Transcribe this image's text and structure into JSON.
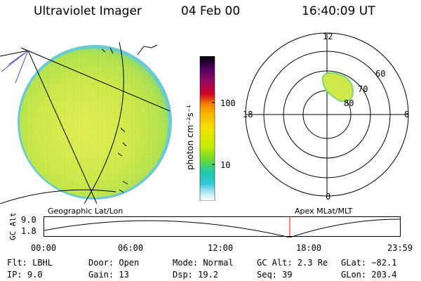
{
  "header": {
    "instrument": "Ultraviolet Imager",
    "date": "04 Feb 00",
    "time": "16:40:09 UT"
  },
  "colorbar": {
    "label": "photon cm⁻²s⁻¹",
    "ticks": [
      "100",
      "10"
    ],
    "colors": [
      "#000000",
      "#4b0060",
      "#6d0a78",
      "#a3003c",
      "#d3002a",
      "#f0a000",
      "#f7e000",
      "#d7f000",
      "#a8e800",
      "#40d840",
      "#20c8c8",
      "#b0e8f0",
      "#ffffff"
    ]
  },
  "polar_plot": {
    "top_label": "12",
    "bottom_label": "0",
    "left_label": "18",
    "right_label": "6",
    "ring_labels": [
      "60",
      "70",
      "80"
    ]
  },
  "timeline": {
    "left_axis_label": "GC Alt",
    "y_ticks": [
      "9.0",
      "1.8"
    ],
    "left_header": "Geographic Lat/Lon",
    "right_header": "Apex MLat/MLT",
    "x_ticks": [
      "00:00",
      "06:00",
      "12:00",
      "18:00",
      "23:59"
    ],
    "marker_color": "#ff0000"
  },
  "info": {
    "flt": "Flt: LBHL",
    "ip": "IP:  9.0",
    "door": "Door: Open",
    "gain": "Gain: 13",
    "mode": "Mode: Normal",
    "dsp": "Dsp:    19.2",
    "gcalt": "GC Alt: 2.3 Re",
    "seq": "Seq: 39",
    "glat": "GLat: −82.1",
    "glon": "GLon: 203.4"
  }
}
